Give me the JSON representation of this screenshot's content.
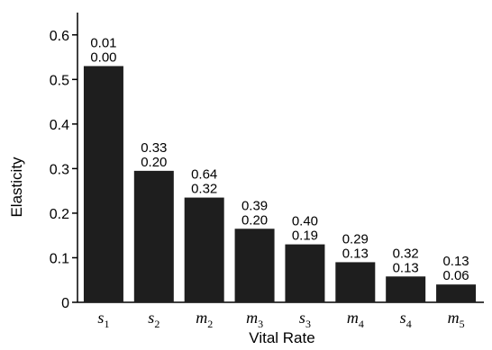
{
  "chart_data": {
    "type": "bar",
    "xlabel": "Vital Rate",
    "ylabel": "Elasticity",
    "ylim": [
      0,
      0.65
    ],
    "yticks": [
      {
        "value": 0,
        "label": "0"
      },
      {
        "value": 0.1,
        "label": "0.1"
      },
      {
        "value": 0.2,
        "label": "0.2"
      },
      {
        "value": 0.3,
        "label": "0.3"
      },
      {
        "value": 0.4,
        "label": "0.4"
      },
      {
        "value": 0.5,
        "label": "0.5"
      },
      {
        "value": 0.6,
        "label": "0.6"
      }
    ],
    "categories": [
      {
        "base": "s",
        "sub": "1"
      },
      {
        "base": "s",
        "sub": "2"
      },
      {
        "base": "m",
        "sub": "2"
      },
      {
        "base": "m",
        "sub": "3"
      },
      {
        "base": "s",
        "sub": "3"
      },
      {
        "base": "m",
        "sub": "4"
      },
      {
        "base": "s",
        "sub": "4"
      },
      {
        "base": "m",
        "sub": "5"
      }
    ],
    "values": [
      0.53,
      0.295,
      0.235,
      0.165,
      0.13,
      0.09,
      0.058,
      0.04
    ],
    "annotations": [
      {
        "top": "0.01",
        "bottom": "0.00"
      },
      {
        "top": "0.33",
        "bottom": "0.20"
      },
      {
        "top": "0.64",
        "bottom": "0.32"
      },
      {
        "top": "0.39",
        "bottom": "0.20"
      },
      {
        "top": "0.40",
        "bottom": "0.19"
      },
      {
        "top": "0.29",
        "bottom": "0.13"
      },
      {
        "top": "0.32",
        "bottom": "0.13"
      },
      {
        "top": "0.13",
        "bottom": "0.06"
      }
    ],
    "bar_color": "#1e1e1e",
    "axis_color": "#000000",
    "grid": false,
    "legend": "none"
  }
}
